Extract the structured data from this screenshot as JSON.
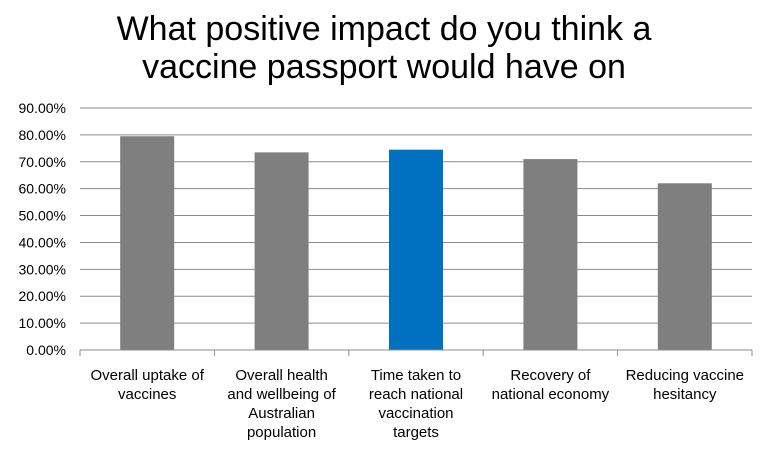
{
  "chart_data": {
    "type": "bar",
    "title_lines": [
      "What positive impact do you think a",
      "vaccine passport would have on"
    ],
    "categories": [
      [
        "Overall uptake of",
        "vaccines"
      ],
      [
        "Overall health",
        "and wellbeing of",
        "Australian",
        "population"
      ],
      [
        "Time taken to",
        "reach national",
        "vaccination",
        "targets"
      ],
      [
        "Recovery of",
        "national economy"
      ],
      [
        "Reducing vaccine",
        "hesitancy"
      ]
    ],
    "values": [
      79.5,
      73.5,
      74.5,
      71.0,
      62.0
    ],
    "yticks": [
      "0.00%",
      "10.00%",
      "20.00%",
      "30.00%",
      "40.00%",
      "50.00%",
      "60.00%",
      "70.00%",
      "80.00%",
      "90.00%"
    ],
    "ylim": [
      0,
      90
    ],
    "grid": true,
    "bar_colors": [
      "#7f7f7f",
      "#7f7f7f",
      "#0070c0",
      "#7f7f7f",
      "#7f7f7f"
    ],
    "gridline_color": "#8c8c8c"
  }
}
